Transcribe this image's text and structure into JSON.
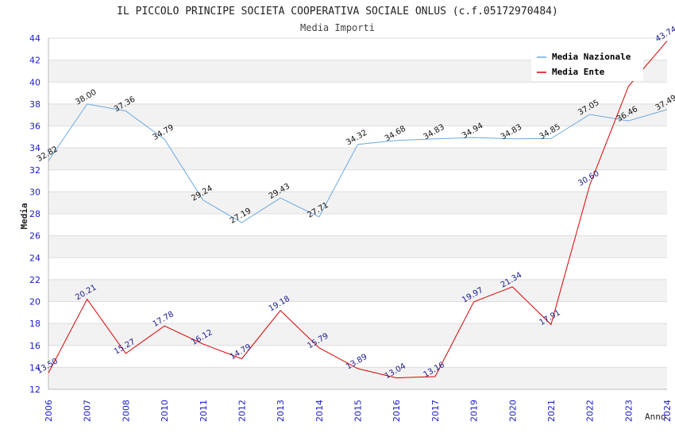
{
  "chart_data": {
    "type": "line",
    "title": "IL PICCOLO PRINCIPE SOCIETA COOPERATIVA SOCIALE ONLUS (c.f.05172970484)",
    "subtitle": "Media Importi",
    "xlabel": "Anno",
    "ylabel": "Media",
    "ylim": [
      12,
      44
    ],
    "yticks": [
      12,
      14,
      16,
      18,
      20,
      22,
      24,
      26,
      28,
      30,
      32,
      34,
      36,
      38,
      40,
      42,
      44
    ],
    "grid": true,
    "legend_position": "top-right",
    "categories": [
      "2006",
      "2007",
      "2008",
      "2010",
      "2011",
      "2012",
      "2013",
      "2014",
      "2015",
      "2016",
      "2017",
      "2019",
      "2020",
      "2021",
      "2022",
      "2023",
      "2024"
    ],
    "series": [
      {
        "name": "Media Nazionale",
        "color": "#6aa9e0",
        "label_color": "#111111",
        "values": [
          32.82,
          38.0,
          37.36,
          34.79,
          29.24,
          27.19,
          29.43,
          27.71,
          34.32,
          34.68,
          34.83,
          34.94,
          34.83,
          34.85,
          37.05,
          36.46,
          37.49
        ],
        "labels": [
          "32.82",
          "38.00",
          "37.36",
          "34.79",
          "29.24",
          "27.19",
          "29.43",
          "27.71",
          "34.32",
          "34.68",
          "34.83",
          "34.94",
          "34.83",
          "34.85",
          "37.05",
          "36.46",
          "37.49"
        ]
      },
      {
        "name": "Media Ente",
        "color": "#dd0000",
        "label_color": "#1a1a8c",
        "values": [
          13.5,
          20.21,
          15.27,
          17.78,
          16.12,
          14.79,
          19.18,
          15.79,
          13.89,
          13.04,
          13.16,
          19.97,
          21.34,
          17.91,
          30.6,
          39.6,
          43.74
        ],
        "labels": [
          "13.50",
          "20.21",
          "15.27",
          "17.78",
          "16.12",
          "14.79",
          "19.18",
          "15.79",
          "13.89",
          "13.04",
          "13.16",
          "19.97",
          "21.34",
          "17.91",
          "30.60",
          "",
          "43.74"
        ]
      }
    ]
  }
}
